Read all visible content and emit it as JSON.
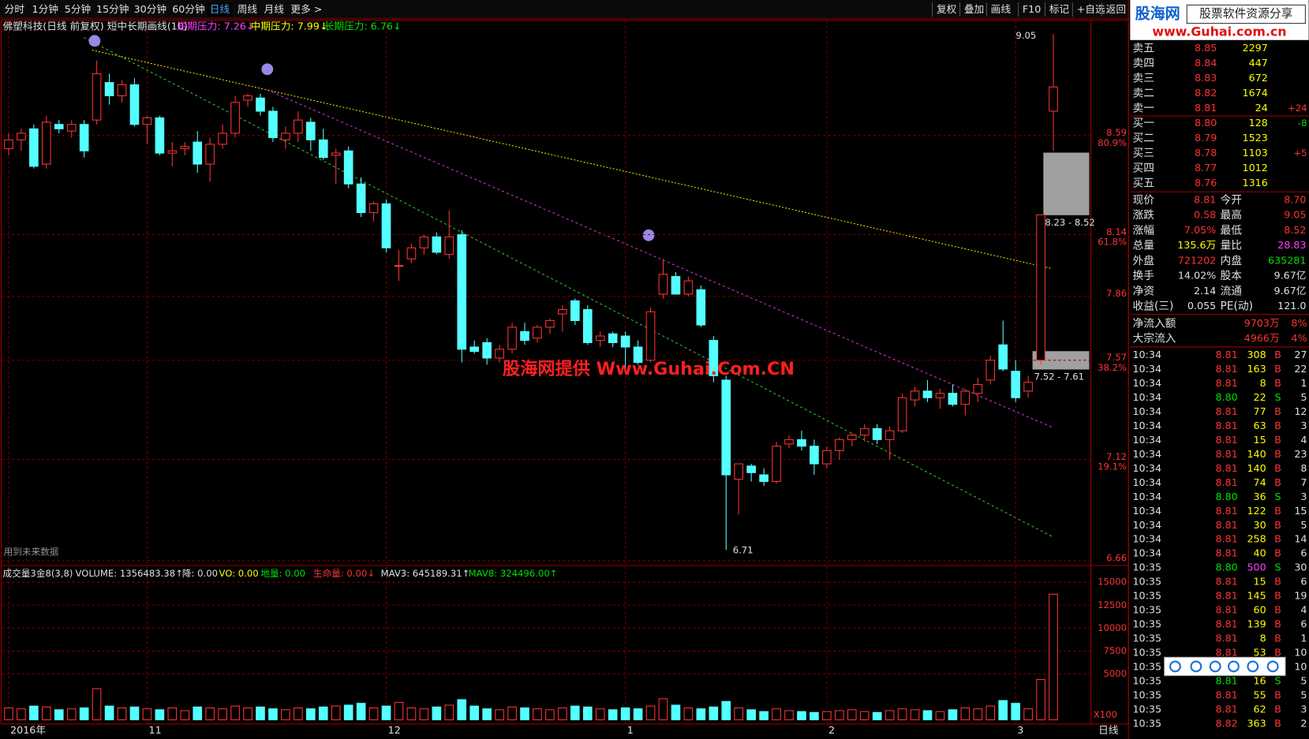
{
  "toolbar": {
    "periods": [
      "分时",
      "1分钟",
      "5分钟",
      "15分钟",
      "30分钟",
      "60分钟",
      "日线",
      "周线",
      "月线",
      "更多 >"
    ],
    "active": "日线",
    "tools": [
      "复权",
      "叠加",
      "画线",
      "F10",
      "标记",
      "+自选",
      "返回"
    ]
  },
  "header": {
    "title": "佛塑科技(日线 前复权) 短中长期画线(10)",
    "short": "短期压力: 7.26↓",
    "mid": "中期压力: 7.99↓",
    "long": "长期压力: 6.76↓"
  },
  "chart_data": [
    {
      "type": "candlestick",
      "ylim": [
        6.65,
        9.11
      ],
      "yticks": [
        8.59,
        8.14,
        7.86,
        7.57,
        7.12,
        6.66
      ],
      "fib_levels": [
        {
          "price": 8.59,
          "label": "80.9%"
        },
        {
          "price": 8.14,
          "label": "61.8%"
        },
        {
          "price": 7.57,
          "label": "38.2%"
        },
        {
          "price": 7.12,
          "label": "19.1%"
        }
      ],
      "up_color": "#ff3232",
      "down_color": "#54ffff",
      "categories": [
        "2016年",
        null,
        null,
        null,
        null,
        null,
        null,
        null,
        null,
        null,
        null,
        "11",
        null,
        null,
        null,
        null,
        null,
        null,
        null,
        null,
        null,
        null,
        null,
        null,
        null,
        null,
        null,
        null,
        null,
        null,
        "12",
        null,
        null,
        null,
        null,
        null,
        null,
        null,
        null,
        null,
        null,
        null,
        null,
        null,
        null,
        null,
        null,
        null,
        null,
        "1",
        null,
        null,
        null,
        null,
        null,
        null,
        null,
        null,
        null,
        null,
        null,
        null,
        null,
        null,
        null,
        "2",
        null,
        null,
        null,
        null,
        null,
        null,
        null,
        null,
        null,
        null,
        null,
        null,
        null,
        null,
        "3",
        null,
        null,
        null
      ],
      "ohlc": [
        [
          8.53,
          8.6,
          8.5,
          8.57
        ],
        [
          8.57,
          8.62,
          8.52,
          8.6
        ],
        [
          8.62,
          8.64,
          8.44,
          8.45
        ],
        [
          8.46,
          8.68,
          8.44,
          8.65
        ],
        [
          8.64,
          8.66,
          8.6,
          8.62
        ],
        [
          8.61,
          8.66,
          8.58,
          8.64
        ],
        [
          8.64,
          8.66,
          8.49,
          8.52
        ],
        [
          8.66,
          8.93,
          8.64,
          8.87
        ],
        [
          8.83,
          8.87,
          8.73,
          8.77
        ],
        [
          8.77,
          8.84,
          8.74,
          8.82
        ],
        [
          8.82,
          8.85,
          8.63,
          8.64
        ],
        [
          8.64,
          8.68,
          8.55,
          8.67
        ],
        [
          8.67,
          8.68,
          8.5,
          8.51
        ],
        [
          8.51,
          8.56,
          8.45,
          8.52
        ],
        [
          8.53,
          8.56,
          8.5,
          8.54
        ],
        [
          8.56,
          8.61,
          8.42,
          8.46
        ],
        [
          8.46,
          8.58,
          8.38,
          8.55
        ],
        [
          8.55,
          8.64,
          8.53,
          8.6
        ],
        [
          8.6,
          8.77,
          8.58,
          8.74
        ],
        [
          8.75,
          8.78,
          8.72,
          8.77
        ],
        [
          8.76,
          8.78,
          8.68,
          8.7
        ],
        [
          8.7,
          8.72,
          8.56,
          8.58
        ],
        [
          8.57,
          8.63,
          8.53,
          8.6
        ],
        [
          8.6,
          8.7,
          8.56,
          8.66
        ],
        [
          8.65,
          8.67,
          8.52,
          8.57
        ],
        [
          8.57,
          8.62,
          8.48,
          8.49
        ],
        [
          8.5,
          8.53,
          8.37,
          8.51
        ],
        [
          8.52,
          8.54,
          8.35,
          8.37
        ],
        [
          8.37,
          8.4,
          8.22,
          8.24
        ],
        [
          8.24,
          8.29,
          8.2,
          8.28
        ],
        [
          8.28,
          8.3,
          8.06,
          8.08
        ],
        [
          8.0,
          8.07,
          7.93,
          8.0
        ],
        [
          8.03,
          8.1,
          8.01,
          8.08
        ],
        [
          8.08,
          8.14,
          8.05,
          8.13
        ],
        [
          8.13,
          8.15,
          8.05,
          8.06
        ],
        [
          8.05,
          8.25,
          8.03,
          8.13
        ],
        [
          8.14,
          8.16,
          7.56,
          7.62
        ],
        [
          7.63,
          7.66,
          7.6,
          7.61
        ],
        [
          7.65,
          7.67,
          7.55,
          7.58
        ],
        [
          7.58,
          7.64,
          7.56,
          7.62
        ],
        [
          7.62,
          7.74,
          7.6,
          7.72
        ],
        [
          7.7,
          7.74,
          7.64,
          7.66
        ],
        [
          7.67,
          7.73,
          7.65,
          7.72
        ],
        [
          7.72,
          7.76,
          7.69,
          7.75
        ],
        [
          7.78,
          7.82,
          7.7,
          7.8
        ],
        [
          7.84,
          7.85,
          7.73,
          7.75
        ],
        [
          7.8,
          7.82,
          7.64,
          7.65
        ],
        [
          7.66,
          7.7,
          7.63,
          7.68
        ],
        [
          7.69,
          7.7,
          7.63,
          7.65
        ],
        [
          7.68,
          7.7,
          7.53,
          7.63
        ],
        [
          7.63,
          7.66,
          7.55,
          7.56
        ],
        [
          7.57,
          7.81,
          7.56,
          7.79
        ],
        [
          7.87,
          8.03,
          7.85,
          7.96
        ],
        [
          7.95,
          7.97,
          7.87,
          7.87
        ],
        [
          7.87,
          7.95,
          7.86,
          7.93
        ],
        [
          7.89,
          7.91,
          7.72,
          7.73
        ],
        [
          7.66,
          7.68,
          7.47,
          7.5
        ],
        [
          7.48,
          7.5,
          6.71,
          7.05
        ],
        [
          7.03,
          7.1,
          6.87,
          7.1
        ],
        [
          7.09,
          7.1,
          7.02,
          7.06
        ],
        [
          7.05,
          7.08,
          7.0,
          7.02
        ],
        [
          7.02,
          7.2,
          7.01,
          7.18
        ],
        [
          7.19,
          7.23,
          7.17,
          7.21
        ],
        [
          7.21,
          7.25,
          7.16,
          7.18
        ],
        [
          7.18,
          7.21,
          7.05,
          7.1
        ],
        [
          7.1,
          7.18,
          7.08,
          7.16
        ],
        [
          7.16,
          7.22,
          7.12,
          7.21
        ],
        [
          7.21,
          7.24,
          7.18,
          7.23
        ],
        [
          7.23,
          7.28,
          7.2,
          7.26
        ],
        [
          7.26,
          7.28,
          7.19,
          7.21
        ],
        [
          7.21,
          7.27,
          7.12,
          7.25
        ],
        [
          7.25,
          7.42,
          7.24,
          7.4
        ],
        [
          7.39,
          7.45,
          7.36,
          7.43
        ],
        [
          7.43,
          7.48,
          7.38,
          7.4
        ],
        [
          7.4,
          7.44,
          7.35,
          7.42
        ],
        [
          7.42,
          7.46,
          7.36,
          7.37
        ],
        [
          7.37,
          7.44,
          7.32,
          7.43
        ],
        [
          7.42,
          7.49,
          7.38,
          7.46
        ],
        [
          7.48,
          7.59,
          7.46,
          7.57
        ],
        [
          7.64,
          7.75,
          7.52,
          7.53
        ],
        [
          7.52,
          7.57,
          7.38,
          7.4
        ],
        [
          7.43,
          7.5,
          7.4,
          7.47
        ],
        [
          7.57,
          8.23,
          7.55,
          8.23
        ],
        [
          8.7,
          9.05,
          8.52,
          8.81
        ]
      ],
      "annotations": {
        "high": "9.05",
        "low": "6.71",
        "zone_upper": "8.23 - 8.52",
        "zone_lower": "7.52 - 7.61",
        "note": "用到未来数据",
        "watermark": "股海网提供 Www.Guhai.Com.CN"
      }
    },
    {
      "type": "bar",
      "header": [
        "成交量3金8(3,8)",
        "VOLUME: 1356483.38↑",
        "降: 0.00",
        "VO: 0.00",
        "地量: 0.00",
        "生命量: 0.00↓",
        "MAV3: 645189.31↑",
        "MAV8: 324496.00↑"
      ],
      "ylim": [
        0,
        16000
      ],
      "yticks": [
        15000,
        12500,
        10000,
        7500,
        5000
      ],
      "unit": "X100",
      "values": [
        1300,
        1200,
        1500,
        1400,
        1100,
        1200,
        1300,
        3400,
        1500,
        1300,
        1400,
        1200,
        1100,
        1300,
        1000,
        1400,
        1300,
        1200,
        1500,
        1300,
        1400,
        1200,
        1100,
        1300,
        1200,
        1400,
        1500,
        1600,
        1800,
        1300,
        1500,
        1900,
        1300,
        1200,
        1400,
        1600,
        2200,
        1500,
        1200,
        1100,
        1400,
        1300,
        1200,
        1100,
        1300,
        1500,
        1400,
        1200,
        1100,
        1300,
        1200,
        1500,
        2300,
        1600,
        1300,
        1200,
        1400,
        2000,
        1300,
        1100,
        900,
        1200,
        1000,
        900,
        800,
        900,
        1000,
        1100,
        900,
        800,
        1000,
        1200,
        1100,
        1000,
        900,
        1100,
        1300,
        1200,
        1500,
        2100,
        1800,
        1200,
        4400,
        13700
      ]
    }
  ],
  "bottom_label": "日线",
  "panel": {
    "logo": "股海网",
    "logo_tag": "股票软件资源分享",
    "logo_url": "www.Guhai.com.cn",
    "sells": [
      [
        "卖五",
        "8.85",
        "2297"
      ],
      [
        "卖四",
        "8.84",
        "447"
      ],
      [
        "卖三",
        "8.83",
        "672"
      ],
      [
        "卖二",
        "8.82",
        "1674"
      ],
      [
        "卖一",
        "8.81",
        "24",
        "+24"
      ]
    ],
    "buys": [
      [
        "买一",
        "8.80",
        "128",
        "-8"
      ],
      [
        "买二",
        "8.79",
        "1523"
      ],
      [
        "买三",
        "8.78",
        "1103",
        "+5"
      ],
      [
        "买四",
        "8.77",
        "1012"
      ],
      [
        "买五",
        "8.76",
        "1316"
      ]
    ],
    "stats": [
      [
        "现价",
        "8.81",
        "今开",
        "8.70"
      ],
      [
        "涨跌",
        "0.58",
        "最高",
        "9.05"
      ],
      [
        "涨幅",
        "7.05%",
        "最低",
        "8.52"
      ],
      [
        "总量",
        "135.6万",
        "量比",
        "28.83"
      ],
      [
        "外盘",
        "721202",
        "内盘",
        "635281"
      ],
      [
        "换手",
        "14.02%",
        "股本",
        "9.67亿"
      ],
      [
        "净资",
        "2.14",
        "流通",
        "9.67亿"
      ],
      [
        "收益(三)",
        "0.055",
        "PE(动)",
        "121.0"
      ]
    ],
    "flows": [
      [
        "净流入额",
        "9703万",
        "8%"
      ],
      [
        "大宗流入",
        "4966万",
        "4%"
      ]
    ],
    "ticks": [
      [
        "10:34",
        "8.81",
        "308",
        "B",
        "27"
      ],
      [
        "10:34",
        "8.81",
        "163",
        "B",
        "22"
      ],
      [
        "10:34",
        "8.81",
        "8",
        "B",
        "1"
      ],
      [
        "10:34",
        "8.80",
        "22",
        "S",
        "5"
      ],
      [
        "10:34",
        "8.81",
        "77",
        "B",
        "12"
      ],
      [
        "10:34",
        "8.81",
        "63",
        "B",
        "3"
      ],
      [
        "10:34",
        "8.81",
        "15",
        "B",
        "4"
      ],
      [
        "10:34",
        "8.81",
        "140",
        "B",
        "23"
      ],
      [
        "10:34",
        "8.81",
        "140",
        "B",
        "8"
      ],
      [
        "10:34",
        "8.81",
        "74",
        "B",
        "7"
      ],
      [
        "10:34",
        "8.80",
        "36",
        "S",
        "3"
      ],
      [
        "10:34",
        "8.81",
        "122",
        "B",
        "15"
      ],
      [
        "10:34",
        "8.81",
        "30",
        "B",
        "5"
      ],
      [
        "10:34",
        "8.81",
        "258",
        "B",
        "14"
      ],
      [
        "10:34",
        "8.81",
        "40",
        "B",
        "6"
      ],
      [
        "10:35",
        "8.80",
        "500",
        "S",
        "30"
      ],
      [
        "10:35",
        "8.81",
        "15",
        "B",
        "6"
      ],
      [
        "10:35",
        "8.81",
        "145",
        "B",
        "19"
      ],
      [
        "10:35",
        "8.81",
        "60",
        "B",
        "4"
      ],
      [
        "10:35",
        "8.81",
        "139",
        "B",
        "6"
      ],
      [
        "10:35",
        "8.81",
        "8",
        "B",
        "1"
      ],
      [
        "10:35",
        "8.81",
        "53",
        "B",
        "10"
      ],
      [
        "10:35",
        "10"
      ],
      [
        "10:35",
        "8.81",
        "16",
        "S",
        "5"
      ],
      [
        "10:35",
        "8.81",
        "55",
        "B",
        "5"
      ],
      [
        "10:35",
        "8.81",
        "62",
        "B",
        "3"
      ],
      [
        "10:35",
        "8.82",
        "363",
        "B",
        "2"
      ]
    ]
  }
}
